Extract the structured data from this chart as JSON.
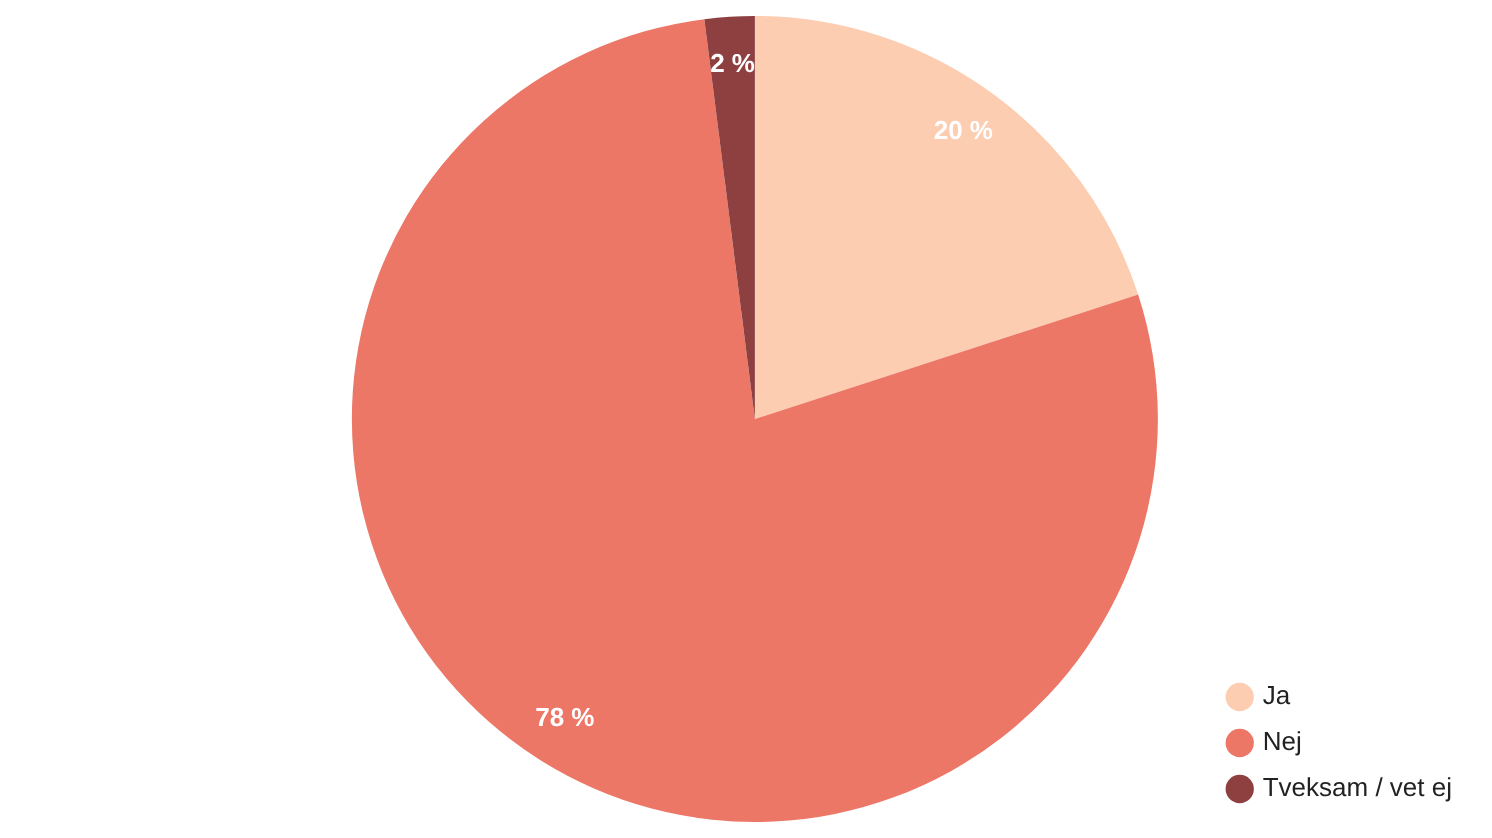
{
  "chart_data": {
    "type": "pie",
    "categories": [
      "Ja",
      "Nej",
      "Tveksam / vet ej"
    ],
    "values": [
      20,
      78,
      2
    ],
    "colors": [
      "#fccdb0",
      "#ec7767",
      "#8e4040"
    ],
    "value_labels": [
      "20 %",
      "78 %",
      "2 %"
    ],
    "legend": "bottom right"
  }
}
